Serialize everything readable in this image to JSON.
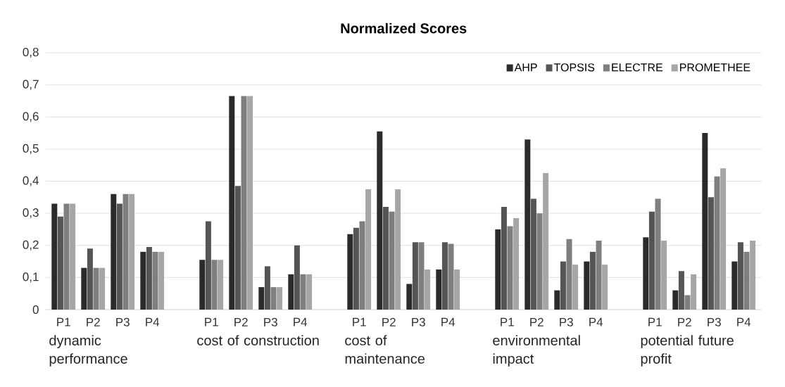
{
  "chart_data": {
    "type": "bar",
    "title": "Normalized Scores",
    "categories": [
      "P1",
      "P2",
      "P3",
      "P4",
      "P1",
      "P2",
      "P3",
      "P4",
      "P1",
      "P2",
      "P3",
      "P4",
      "P1",
      "P2",
      "P3",
      "P4",
      "P1",
      "P2",
      "P3",
      "P4"
    ],
    "series": [
      {
        "name": "AHP",
        "color": "#2b2b2b",
        "values": [
          0.33,
          0.13,
          0.36,
          0.18,
          0.155,
          0.665,
          0.07,
          0.11,
          0.235,
          0.555,
          0.08,
          0.125,
          0.25,
          0.53,
          0.06,
          0.15,
          0.225,
          0.06,
          0.55,
          0.15
        ]
      },
      {
        "name": "TOPSIS",
        "color": "#555555",
        "values": [
          0.29,
          0.19,
          0.33,
          0.195,
          0.275,
          0.385,
          0.135,
          0.2,
          0.255,
          0.32,
          0.21,
          0.21,
          0.32,
          0.345,
          0.15,
          0.18,
          0.305,
          0.12,
          0.35,
          0.21
        ]
      },
      {
        "name": "ELECTRE",
        "color": "#7f7f7f",
        "values": [
          0.33,
          0.13,
          0.36,
          0.18,
          0.155,
          0.665,
          0.07,
          0.11,
          0.275,
          0.305,
          0.21,
          0.205,
          0.26,
          0.3,
          0.22,
          0.215,
          0.345,
          0.045,
          0.415,
          0.18
        ]
      },
      {
        "name": "PROMETHEE",
        "color": "#a6a6a6",
        "values": [
          0.33,
          0.13,
          0.36,
          0.18,
          0.155,
          0.665,
          0.07,
          0.11,
          0.375,
          0.375,
          0.125,
          0.125,
          0.285,
          0.425,
          0.14,
          0.14,
          0.215,
          0.11,
          0.44,
          0.215
        ]
      }
    ],
    "annotations": [
      "dynamic performance",
      "cost of construction",
      "cost of maintenance",
      "environmental impact",
      "potential future profit"
    ],
    "ylim": [
      0,
      0.8
    ],
    "yticks": [
      0,
      {
        "value": 0.1,
        "label": "0,1"
      },
      {
        "value": 0.2,
        "label": "0,2"
      },
      {
        "value": 0.3,
        "label": "0,3"
      },
      {
        "value": 0.4,
        "label": "0,4"
      },
      {
        "value": 0.5,
        "label": "0,5"
      },
      {
        "value": 0.6,
        "label": "0,6"
      },
      {
        "value": 0.7,
        "label": "0,7"
      },
      {
        "value": 0.8,
        "label": "0,8"
      }
    ],
    "grid": "y",
    "legend": "top right"
  }
}
